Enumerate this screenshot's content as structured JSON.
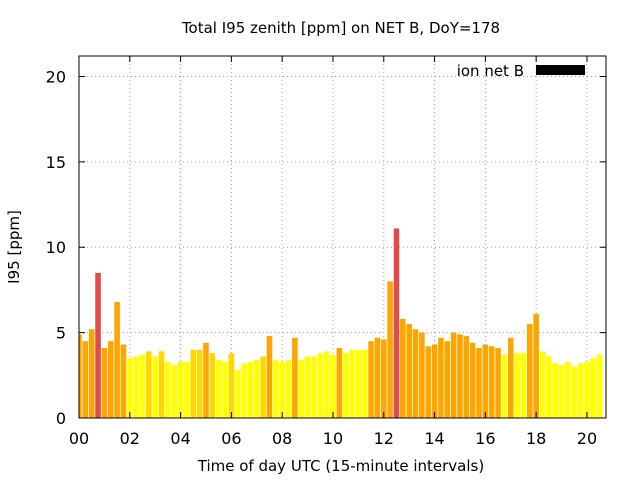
{
  "chart_data": {
    "type": "bar",
    "title": "Total I95 zenith [ppm] on NET B, DoY=178",
    "xlabel": "Time of day UTC (15-minute intervals)",
    "ylabel": "I95 [ppm]",
    "xlim": [
      0,
      20.75
    ],
    "ylim": [
      0,
      21.2
    ],
    "x_ticks": [
      {
        "value": 0,
        "label": "00"
      },
      {
        "value": 2,
        "label": "02"
      },
      {
        "value": 4,
        "label": "04"
      },
      {
        "value": 6,
        "label": "06"
      },
      {
        "value": 8,
        "label": "08"
      },
      {
        "value": 10,
        "label": "10"
      },
      {
        "value": 12,
        "label": "12"
      },
      {
        "value": 14,
        "label": "14"
      },
      {
        "value": 16,
        "label": "16"
      },
      {
        "value": 18,
        "label": "18"
      },
      {
        "value": 20,
        "label": "20"
      }
    ],
    "y_ticks": [
      {
        "value": 0,
        "label": "0"
      },
      {
        "value": 5,
        "label": "5"
      },
      {
        "value": 10,
        "label": "10"
      },
      {
        "value": 15,
        "label": "15"
      },
      {
        "value": 20,
        "label": "20"
      }
    ],
    "grid": true,
    "legend": {
      "position": "top-right",
      "label": "ion net B",
      "color": "#000000"
    },
    "colors": {
      "low": "#ffff00",
      "mid": "#ffd700",
      "high": "#ffa500",
      "peak": "#e34b4b"
    },
    "bar_width_hours": 0.22,
    "bars": [
      {
        "x": 0.0,
        "value": 4.9,
        "level": "high"
      },
      {
        "x": 0.25,
        "value": 4.5,
        "level": "high"
      },
      {
        "x": 0.5,
        "value": 5.2,
        "level": "high"
      },
      {
        "x": 0.75,
        "value": 8.5,
        "level": "peak"
      },
      {
        "x": 1.0,
        "value": 4.1,
        "level": "high"
      },
      {
        "x": 1.25,
        "value": 4.5,
        "level": "high"
      },
      {
        "x": 1.5,
        "value": 6.8,
        "level": "high"
      },
      {
        "x": 1.75,
        "value": 4.3,
        "level": "high"
      },
      {
        "x": 2.0,
        "value": 3.5,
        "level": "low"
      },
      {
        "x": 2.25,
        "value": 3.6,
        "level": "low"
      },
      {
        "x": 2.5,
        "value": 3.7,
        "level": "low"
      },
      {
        "x": 2.75,
        "value": 3.9,
        "level": "mid"
      },
      {
        "x": 3.0,
        "value": 3.6,
        "level": "low"
      },
      {
        "x": 3.25,
        "value": 3.9,
        "level": "mid"
      },
      {
        "x": 3.5,
        "value": 3.3,
        "level": "low"
      },
      {
        "x": 3.75,
        "value": 3.1,
        "level": "low"
      },
      {
        "x": 4.0,
        "value": 3.3,
        "level": "low"
      },
      {
        "x": 4.25,
        "value": 3.3,
        "level": "low"
      },
      {
        "x": 4.5,
        "value": 4.0,
        "level": "mid"
      },
      {
        "x": 4.75,
        "value": 4.0,
        "level": "mid"
      },
      {
        "x": 5.0,
        "value": 4.4,
        "level": "high"
      },
      {
        "x": 5.25,
        "value": 3.8,
        "level": "mid"
      },
      {
        "x": 5.5,
        "value": 3.4,
        "level": "low"
      },
      {
        "x": 5.75,
        "value": 3.3,
        "level": "low"
      },
      {
        "x": 6.0,
        "value": 3.8,
        "level": "mid"
      },
      {
        "x": 6.25,
        "value": 2.8,
        "level": "low"
      },
      {
        "x": 6.5,
        "value": 3.2,
        "level": "low"
      },
      {
        "x": 6.75,
        "value": 3.3,
        "level": "low"
      },
      {
        "x": 7.0,
        "value": 3.4,
        "level": "low"
      },
      {
        "x": 7.25,
        "value": 3.6,
        "level": "mid"
      },
      {
        "x": 7.5,
        "value": 4.8,
        "level": "high"
      },
      {
        "x": 7.75,
        "value": 3.4,
        "level": "low"
      },
      {
        "x": 8.0,
        "value": 3.3,
        "level": "low"
      },
      {
        "x": 8.25,
        "value": 3.4,
        "level": "low"
      },
      {
        "x": 8.5,
        "value": 4.7,
        "level": "high"
      },
      {
        "x": 8.75,
        "value": 3.4,
        "level": "low"
      },
      {
        "x": 9.0,
        "value": 3.6,
        "level": "low"
      },
      {
        "x": 9.25,
        "value": 3.6,
        "level": "low"
      },
      {
        "x": 9.5,
        "value": 3.8,
        "level": "low"
      },
      {
        "x": 9.75,
        "value": 3.9,
        "level": "low"
      },
      {
        "x": 10.0,
        "value": 3.7,
        "level": "low"
      },
      {
        "x": 10.25,
        "value": 4.1,
        "level": "high"
      },
      {
        "x": 10.5,
        "value": 3.8,
        "level": "low"
      },
      {
        "x": 10.75,
        "value": 4.0,
        "level": "low"
      },
      {
        "x": 11.0,
        "value": 4.0,
        "level": "low"
      },
      {
        "x": 11.25,
        "value": 4.0,
        "level": "low"
      },
      {
        "x": 11.5,
        "value": 4.5,
        "level": "high"
      },
      {
        "x": 11.75,
        "value": 4.7,
        "level": "high"
      },
      {
        "x": 12.0,
        "value": 4.6,
        "level": "high"
      },
      {
        "x": 12.25,
        "value": 8.0,
        "level": "high"
      },
      {
        "x": 12.5,
        "value": 11.1,
        "level": "peak"
      },
      {
        "x": 12.75,
        "value": 5.8,
        "level": "high"
      },
      {
        "x": 13.0,
        "value": 5.5,
        "level": "high"
      },
      {
        "x": 13.25,
        "value": 5.2,
        "level": "high"
      },
      {
        "x": 13.5,
        "value": 5.0,
        "level": "high"
      },
      {
        "x": 13.75,
        "value": 4.2,
        "level": "high"
      },
      {
        "x": 14.0,
        "value": 4.3,
        "level": "high"
      },
      {
        "x": 14.25,
        "value": 4.7,
        "level": "high"
      },
      {
        "x": 14.5,
        "value": 4.5,
        "level": "high"
      },
      {
        "x": 14.75,
        "value": 5.0,
        "level": "high"
      },
      {
        "x": 15.0,
        "value": 4.9,
        "level": "high"
      },
      {
        "x": 15.25,
        "value": 4.8,
        "level": "high"
      },
      {
        "x": 15.5,
        "value": 4.4,
        "level": "high"
      },
      {
        "x": 15.75,
        "value": 4.1,
        "level": "high"
      },
      {
        "x": 16.0,
        "value": 4.3,
        "level": "high"
      },
      {
        "x": 16.25,
        "value": 4.2,
        "level": "high"
      },
      {
        "x": 16.5,
        "value": 4.1,
        "level": "high"
      },
      {
        "x": 16.75,
        "value": 3.7,
        "level": "low"
      },
      {
        "x": 17.0,
        "value": 4.7,
        "level": "high"
      },
      {
        "x": 17.25,
        "value": 3.8,
        "level": "low"
      },
      {
        "x": 17.5,
        "value": 3.8,
        "level": "low"
      },
      {
        "x": 17.75,
        "value": 5.5,
        "level": "high"
      },
      {
        "x": 18.0,
        "value": 6.1,
        "level": "high"
      },
      {
        "x": 18.25,
        "value": 3.9,
        "level": "low"
      },
      {
        "x": 18.5,
        "value": 3.6,
        "level": "low"
      },
      {
        "x": 18.75,
        "value": 3.2,
        "level": "low"
      },
      {
        "x": 19.0,
        "value": 3.1,
        "level": "low"
      },
      {
        "x": 19.25,
        "value": 3.3,
        "level": "low"
      },
      {
        "x": 19.5,
        "value": 3.0,
        "level": "low"
      },
      {
        "x": 19.75,
        "value": 3.2,
        "level": "low"
      },
      {
        "x": 20.0,
        "value": 3.3,
        "level": "low"
      },
      {
        "x": 20.25,
        "value": 3.5,
        "level": "low"
      },
      {
        "x": 20.5,
        "value": 3.7,
        "level": "low"
      }
    ]
  }
}
